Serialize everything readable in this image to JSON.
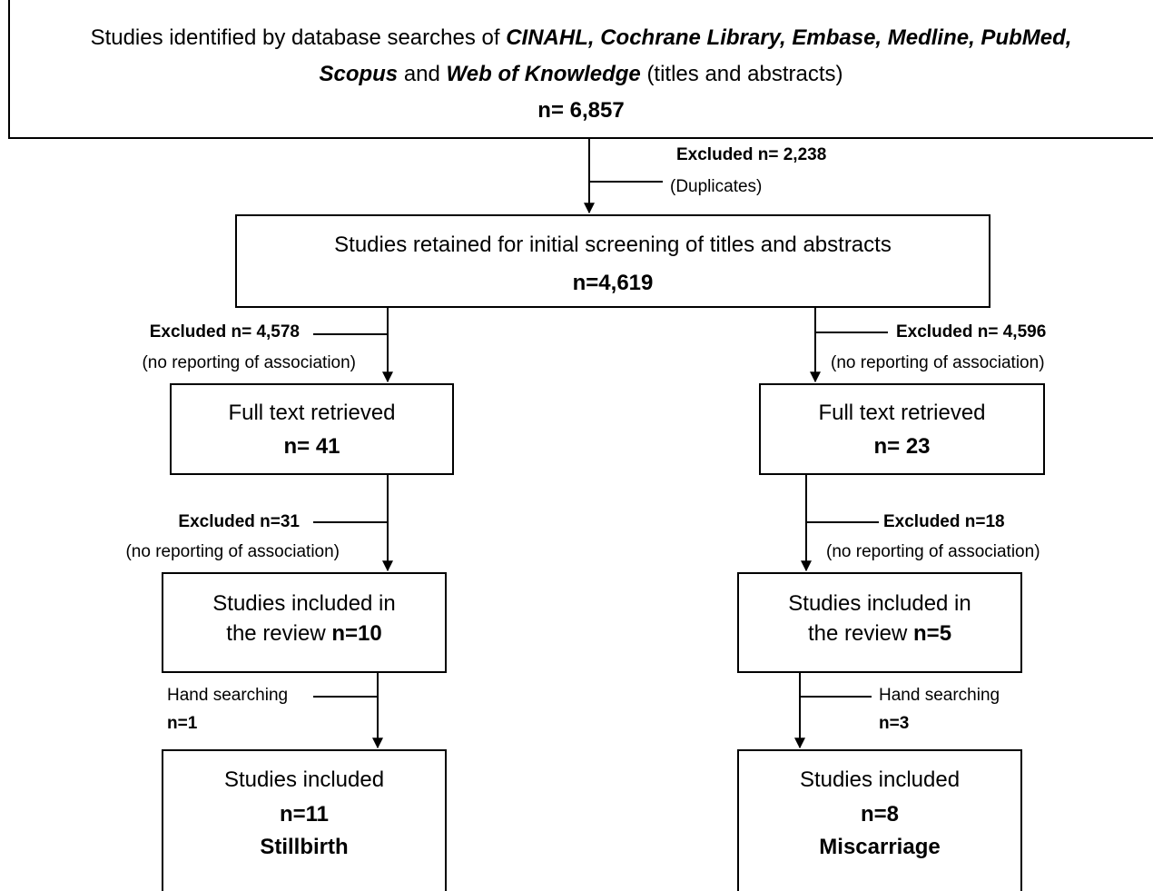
{
  "search": {
    "intro": "Studies identified by database searches of",
    "databases": "CINAHL, Cochrane Library, Embase, Medline, PubMed,",
    "database_scopus": "Scopus",
    "conjunction": "and",
    "database_wok": "Web of Knowledge",
    "scope": "(titles and abstracts)",
    "count": "n= 6,857"
  },
  "duplicates": {
    "label": "Excluded n= 2,238",
    "reason": "(Duplicates)"
  },
  "screening": {
    "text": "Studies retained for initial screening of titles and abstracts",
    "count": "n=4,619"
  },
  "branches": [
    {
      "excluded_screen": {
        "label": "Excluded n= 4,578",
        "reason": "(no reporting of association)"
      },
      "fulltext": {
        "text": "Full text retrieved",
        "count": "n= 41"
      },
      "excluded_full": {
        "label": "Excluded n=31",
        "reason": "(no reporting of association)"
      },
      "review": {
        "lines": [
          "Studies included in",
          "the review"
        ],
        "count": "n=10"
      },
      "hand": {
        "label": "Hand searching",
        "count": "n=1"
      },
      "final": {
        "text": "Studies included",
        "count": "n=11",
        "outcome": "Stillbirth"
      }
    },
    {
      "excluded_screen": {
        "label": "Excluded n= 4,596",
        "reason": "(no reporting of association)"
      },
      "fulltext": {
        "text": "Full text retrieved",
        "count": "n= 23"
      },
      "excluded_full": {
        "label": "Excluded n=18",
        "reason": "(no reporting of association)"
      },
      "review": {
        "lines": [
          "Studies included in",
          "the review"
        ],
        "count": "n=5"
      },
      "hand": {
        "label": "Hand searching",
        "count": "n=3"
      },
      "final": {
        "text": "Studies included",
        "count": "n=8",
        "outcome": "Miscarriage"
      }
    }
  ]
}
